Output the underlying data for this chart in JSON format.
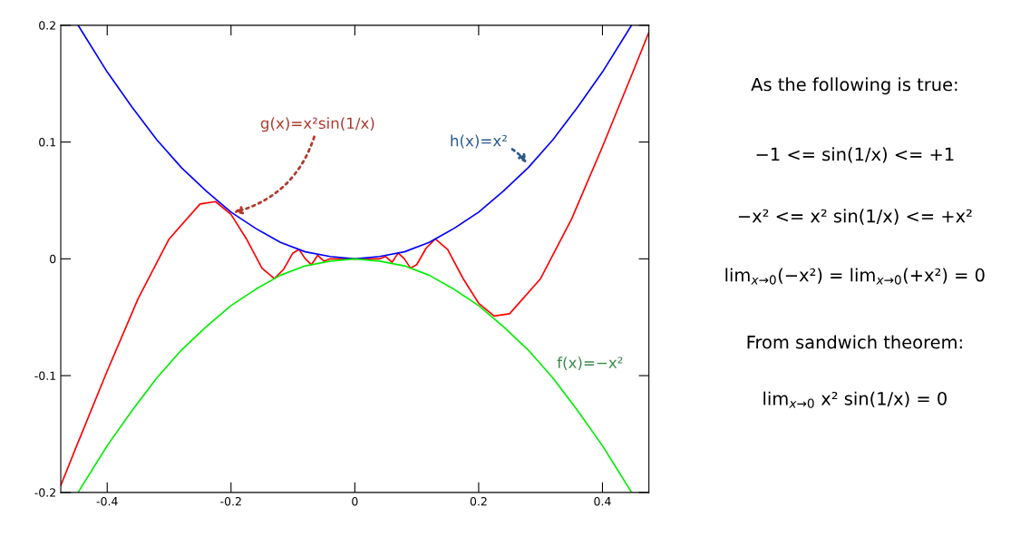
{
  "chart_data": {
    "type": "line",
    "x": [
      -0.475,
      -0.45,
      -0.4,
      -0.35,
      -0.3,
      -0.25,
      -0.225,
      -0.2,
      -0.175,
      -0.15,
      -0.13,
      -0.115,
      -0.1,
      -0.09,
      -0.08,
      -0.07,
      -0.06,
      -0.05,
      -0.04,
      -0.03,
      0,
      0.03,
      0.04,
      0.05,
      0.06,
      0.07,
      0.08,
      0.09,
      0.1,
      0.115,
      0.13,
      0.15,
      0.175,
      0.2,
      0.225,
      0.25,
      0.3,
      0.35,
      0.4,
      0.45,
      0.475
    ],
    "series": [
      {
        "color": "#ff0000",
        "values": [
          -0.194,
          -0.161,
          -0.096,
          -0.034,
          0.017,
          0.047,
          0.049,
          0.038,
          0.017,
          -0.008,
          -0.017,
          -0.009,
          0.005,
          0.008,
          0.0,
          -0.005,
          0.003,
          -0.002,
          0.0,
          0.0,
          0,
          0.0,
          0.0,
          0.002,
          -0.003,
          0.005,
          0.0,
          -0.008,
          -0.005,
          0.009,
          0.017,
          0.008,
          -0.017,
          -0.038,
          -0.049,
          -0.047,
          -0.017,
          0.034,
          0.096,
          0.161,
          0.194
        ]
      },
      {
        "color": "#0000ff",
        "x": [
          -0.447,
          -0.44,
          -0.4,
          -0.36,
          -0.32,
          -0.28,
          -0.24,
          -0.2,
          -0.16,
          -0.12,
          -0.08,
          -0.04,
          0,
          0.04,
          0.08,
          0.12,
          0.16,
          0.2,
          0.24,
          0.28,
          0.32,
          0.36,
          0.4,
          0.44,
          0.447
        ],
        "values": [
          0.2,
          0.194,
          0.16,
          0.13,
          0.102,
          0.078,
          0.058,
          0.04,
          0.026,
          0.014,
          0.006,
          0.002,
          0,
          0.002,
          0.006,
          0.014,
          0.026,
          0.04,
          0.058,
          0.078,
          0.102,
          0.13,
          0.16,
          0.194,
          0.2
        ]
      },
      {
        "color": "#00ee00",
        "x": [
          -0.447,
          -0.44,
          -0.4,
          -0.36,
          -0.32,
          -0.28,
          -0.24,
          -0.2,
          -0.16,
          -0.12,
          -0.08,
          -0.04,
          0,
          0.04,
          0.08,
          0.12,
          0.16,
          0.2,
          0.24,
          0.28,
          0.32,
          0.36,
          0.4,
          0.44,
          0.447
        ],
        "values": [
          -0.2,
          -0.194,
          -0.16,
          -0.13,
          -0.102,
          -0.078,
          -0.058,
          -0.04,
          -0.026,
          -0.014,
          -0.006,
          -0.002,
          0,
          -0.002,
          -0.006,
          -0.014,
          -0.026,
          -0.04,
          -0.058,
          -0.078,
          -0.102,
          -0.13,
          -0.16,
          -0.194,
          -0.2
        ]
      }
    ],
    "xlim": [
      -0.475,
      0.475
    ],
    "ylim": [
      -0.2,
      0.2
    ],
    "xticks": [
      -0.4,
      -0.2,
      0,
      0.2,
      0.4
    ],
    "yticks": [
      -0.2,
      -0.1,
      0,
      0.1,
      0.2
    ],
    "grid": false,
    "marker": "none",
    "line_style": "solid",
    "annotations": [
      {
        "text": "g(x)=x²sin(1/x)",
        "x": -0.2,
        "y": 0.039
      },
      {
        "text": "h(x)=x²",
        "x": 0.28,
        "y": 0.08
      },
      "f(x)=−x²",
      "As the following is true:",
      "−1 <= sin(1/x) <= +1",
      "−x² <= x² sin(1/x) <= +x²",
      "lim$_{x→0}$(−x²) = lim$_{x→0}$(+x²) = 0",
      "From sandwich theorem:",
      "lim$_{x→0}$ x² sin(1/x) = 0"
    ]
  }
}
